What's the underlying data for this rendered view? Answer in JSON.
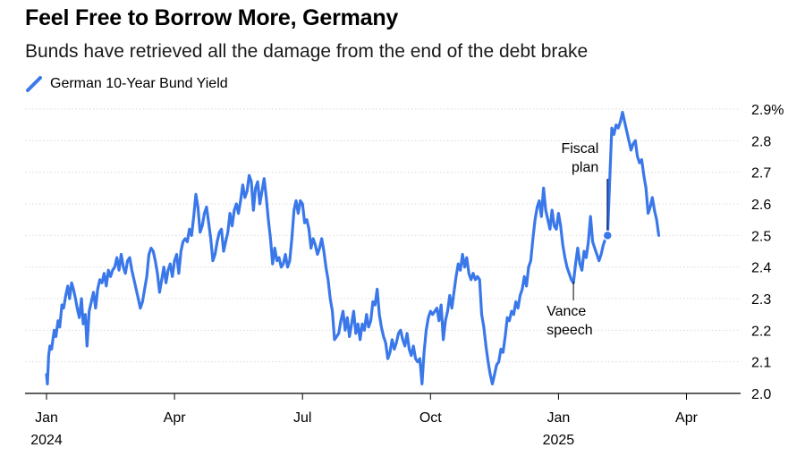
{
  "title": "Feel Free to Borrow More, Germany",
  "subtitle": "Bunds have retrieved all the damage from the end of the debt brake",
  "legend": {
    "label": "German 10-Year Bund Yield",
    "color": "#3a78ea"
  },
  "chart_data": {
    "type": "line",
    "title": "Feel Free to Borrow More, Germany",
    "xlabel": "",
    "ylabel": "",
    "ylim": [
      2.0,
      2.9
    ],
    "xlim_month_index": [
      0,
      16
    ],
    "y_ticks": [
      {
        "value": 2.9,
        "label": "2.9%"
      },
      {
        "value": 2.8,
        "label": "2.8"
      },
      {
        "value": 2.7,
        "label": "2.7"
      },
      {
        "value": 2.6,
        "label": "2.6"
      },
      {
        "value": 2.5,
        "label": "2.5"
      },
      {
        "value": 2.4,
        "label": "2.4"
      },
      {
        "value": 2.3,
        "label": "2.3"
      },
      {
        "value": 2.2,
        "label": "2.2"
      },
      {
        "value": 2.1,
        "label": "2.1"
      },
      {
        "value": 2.0,
        "label": "2.0"
      }
    ],
    "x_ticks": [
      {
        "t": 0,
        "label": "Jan",
        "sublabel": "2024"
      },
      {
        "t": 3,
        "label": "Apr",
        "sublabel": ""
      },
      {
        "t": 6,
        "label": "Jul",
        "sublabel": ""
      },
      {
        "t": 9,
        "label": "Oct",
        "sublabel": ""
      },
      {
        "t": 12,
        "label": "Jan",
        "sublabel": "2025"
      },
      {
        "t": 15,
        "label": "Apr",
        "sublabel": ""
      }
    ],
    "series": [
      {
        "name": "German 10-Year Bund Yield",
        "color": "#3a78ea",
        "points": [
          [
            0.0,
            2.06
          ],
          [
            0.02,
            2.03
          ],
          [
            0.05,
            2.12
          ],
          [
            0.08,
            2.15
          ],
          [
            0.12,
            2.14
          ],
          [
            0.18,
            2.2
          ],
          [
            0.22,
            2.18
          ],
          [
            0.27,
            2.23
          ],
          [
            0.31,
            2.21
          ],
          [
            0.36,
            2.28
          ],
          [
            0.4,
            2.27
          ],
          [
            0.45,
            2.31
          ],
          [
            0.5,
            2.34
          ],
          [
            0.54,
            2.3
          ],
          [
            0.59,
            2.35
          ],
          [
            0.63,
            2.33
          ],
          [
            0.68,
            2.3
          ],
          [
            0.72,
            2.27
          ],
          [
            0.77,
            2.24
          ],
          [
            0.82,
            2.3
          ],
          [
            0.86,
            2.22
          ],
          [
            0.91,
            2.25
          ],
          [
            0.95,
            2.15
          ],
          [
            1.0,
            2.26
          ],
          [
            1.05,
            2.29
          ],
          [
            1.1,
            2.32
          ],
          [
            1.15,
            2.27
          ],
          [
            1.2,
            2.33
          ],
          [
            1.25,
            2.36
          ],
          [
            1.3,
            2.35
          ],
          [
            1.35,
            2.38
          ],
          [
            1.4,
            2.34
          ],
          [
            1.45,
            2.39
          ],
          [
            1.5,
            2.37
          ],
          [
            1.55,
            2.39
          ],
          [
            1.6,
            2.4
          ],
          [
            1.65,
            2.43
          ],
          [
            1.7,
            2.39
          ],
          [
            1.75,
            2.44
          ],
          [
            1.8,
            2.4
          ],
          [
            1.85,
            2.38
          ],
          [
            1.9,
            2.42
          ],
          [
            1.95,
            2.43
          ],
          [
            2.0,
            2.39
          ],
          [
            2.05,
            2.36
          ],
          [
            2.1,
            2.33
          ],
          [
            2.15,
            2.3
          ],
          [
            2.2,
            2.27
          ],
          [
            2.25,
            2.29
          ],
          [
            2.3,
            2.33
          ],
          [
            2.35,
            2.37
          ],
          [
            2.4,
            2.44
          ],
          [
            2.45,
            2.46
          ],
          [
            2.5,
            2.45
          ],
          [
            2.55,
            2.42
          ],
          [
            2.6,
            2.38
          ],
          [
            2.65,
            2.32
          ],
          [
            2.7,
            2.36
          ],
          [
            2.75,
            2.4
          ],
          [
            2.8,
            2.35
          ],
          [
            2.85,
            2.39
          ],
          [
            2.9,
            2.41
          ],
          [
            2.95,
            2.37
          ],
          [
            3.0,
            2.42
          ],
          [
            3.05,
            2.44
          ],
          [
            3.1,
            2.38
          ],
          [
            3.15,
            2.45
          ],
          [
            3.2,
            2.48
          ],
          [
            3.25,
            2.49
          ],
          [
            3.3,
            2.48
          ],
          [
            3.35,
            2.52
          ],
          [
            3.4,
            2.5
          ],
          [
            3.45,
            2.56
          ],
          [
            3.5,
            2.63
          ],
          [
            3.55,
            2.59
          ],
          [
            3.6,
            2.51
          ],
          [
            3.65,
            2.53
          ],
          [
            3.7,
            2.57
          ],
          [
            3.75,
            2.59
          ],
          [
            3.8,
            2.54
          ],
          [
            3.85,
            2.49
          ],
          [
            3.9,
            2.42
          ],
          [
            3.95,
            2.44
          ],
          [
            4.0,
            2.48
          ],
          [
            4.05,
            2.51
          ],
          [
            4.1,
            2.52
          ],
          [
            4.15,
            2.45
          ],
          [
            4.2,
            2.48
          ],
          [
            4.25,
            2.51
          ],
          [
            4.3,
            2.57
          ],
          [
            4.35,
            2.53
          ],
          [
            4.4,
            2.58
          ],
          [
            4.45,
            2.6
          ],
          [
            4.5,
            2.57
          ],
          [
            4.55,
            2.61
          ],
          [
            4.6,
            2.66
          ],
          [
            4.65,
            2.62
          ],
          [
            4.7,
            2.64
          ],
          [
            4.75,
            2.69
          ],
          [
            4.8,
            2.67
          ],
          [
            4.85,
            2.58
          ],
          [
            4.9,
            2.65
          ],
          [
            4.95,
            2.67
          ],
          [
            5.0,
            2.6
          ],
          [
            5.05,
            2.64
          ],
          [
            5.1,
            2.68
          ],
          [
            5.15,
            2.62
          ],
          [
            5.2,
            2.55
          ],
          [
            5.25,
            2.49
          ],
          [
            5.3,
            2.41
          ],
          [
            5.35,
            2.46
          ],
          [
            5.4,
            2.42
          ],
          [
            5.45,
            2.43
          ],
          [
            5.5,
            2.4
          ],
          [
            5.55,
            2.41
          ],
          [
            5.6,
            2.44
          ],
          [
            5.65,
            2.4
          ],
          [
            5.7,
            2.42
          ],
          [
            5.75,
            2.49
          ],
          [
            5.8,
            2.58
          ],
          [
            5.85,
            2.61
          ],
          [
            5.9,
            2.57
          ],
          [
            5.95,
            2.61
          ],
          [
            6.0,
            2.6
          ],
          [
            6.05,
            2.54
          ],
          [
            6.1,
            2.55
          ],
          [
            6.15,
            2.52
          ],
          [
            6.2,
            2.46
          ],
          [
            6.25,
            2.49
          ],
          [
            6.3,
            2.47
          ],
          [
            6.35,
            2.44
          ],
          [
            6.4,
            2.46
          ],
          [
            6.45,
            2.49
          ],
          [
            6.5,
            2.45
          ],
          [
            6.55,
            2.4
          ],
          [
            6.6,
            2.36
          ],
          [
            6.65,
            2.3
          ],
          [
            6.7,
            2.26
          ],
          [
            6.75,
            2.17
          ],
          [
            6.8,
            2.18
          ],
          [
            6.85,
            2.19
          ],
          [
            6.9,
            2.23
          ],
          [
            6.95,
            2.26
          ],
          [
            7.0,
            2.2
          ],
          [
            7.05,
            2.24
          ],
          [
            7.1,
            2.18
          ],
          [
            7.15,
            2.22
          ],
          [
            7.2,
            2.26
          ],
          [
            7.25,
            2.19
          ],
          [
            7.3,
            2.22
          ],
          [
            7.35,
            2.17
          ],
          [
            7.4,
            2.22
          ],
          [
            7.45,
            2.2
          ],
          [
            7.5,
            2.25
          ],
          [
            7.55,
            2.21
          ],
          [
            7.6,
            2.23
          ],
          [
            7.65,
            2.29
          ],
          [
            7.7,
            2.28
          ],
          [
            7.75,
            2.33
          ],
          [
            7.8,
            2.25
          ],
          [
            7.85,
            2.21
          ],
          [
            7.9,
            2.18
          ],
          [
            7.95,
            2.16
          ],
          [
            8.0,
            2.11
          ],
          [
            8.05,
            2.13
          ],
          [
            8.1,
            2.17
          ],
          [
            8.15,
            2.14
          ],
          [
            8.2,
            2.16
          ],
          [
            8.25,
            2.19
          ],
          [
            8.3,
            2.2
          ],
          [
            8.35,
            2.17
          ],
          [
            8.4,
            2.15
          ],
          [
            8.45,
            2.19
          ],
          [
            8.5,
            2.14
          ],
          [
            8.55,
            2.12
          ],
          [
            8.6,
            2.15
          ],
          [
            8.65,
            2.11
          ],
          [
            8.7,
            2.1
          ],
          [
            8.75,
            2.11
          ],
          [
            8.8,
            2.03
          ],
          [
            8.85,
            2.13
          ],
          [
            8.9,
            2.2
          ],
          [
            8.95,
            2.24
          ],
          [
            9.0,
            2.26
          ],
          [
            9.05,
            2.25
          ],
          [
            9.1,
            2.26
          ],
          [
            9.15,
            2.27
          ],
          [
            9.2,
            2.23
          ],
          [
            9.25,
            2.28
          ],
          [
            9.3,
            2.17
          ],
          [
            9.35,
            2.23
          ],
          [
            9.4,
            2.26
          ],
          [
            9.45,
            2.31
          ],
          [
            9.5,
            2.27
          ],
          [
            9.55,
            2.32
          ],
          [
            9.6,
            2.37
          ],
          [
            9.65,
            2.41
          ],
          [
            9.7,
            2.39
          ],
          [
            9.75,
            2.44
          ],
          [
            9.8,
            2.4
          ],
          [
            9.85,
            2.43
          ],
          [
            9.9,
            2.38
          ],
          [
            9.95,
            2.36
          ],
          [
            10.0,
            2.38
          ],
          [
            10.05,
            2.36
          ],
          [
            10.1,
            2.37
          ],
          [
            10.15,
            2.36
          ],
          [
            10.2,
            2.25
          ],
          [
            10.25,
            2.21
          ],
          [
            10.3,
            2.15
          ],
          [
            10.35,
            2.1
          ],
          [
            10.4,
            2.06
          ],
          [
            10.45,
            2.03
          ],
          [
            10.5,
            2.06
          ],
          [
            10.55,
            2.09
          ],
          [
            10.6,
            2.1
          ],
          [
            10.65,
            2.14
          ],
          [
            10.7,
            2.13
          ],
          [
            10.75,
            2.18
          ],
          [
            10.8,
            2.24
          ],
          [
            10.85,
            2.23
          ],
          [
            10.9,
            2.26
          ],
          [
            10.95,
            2.25
          ],
          [
            11.0,
            2.29
          ],
          [
            11.05,
            2.27
          ],
          [
            11.1,
            2.31
          ],
          [
            11.15,
            2.33
          ],
          [
            11.2,
            2.37
          ],
          [
            11.25,
            2.34
          ],
          [
            11.3,
            2.4
          ],
          [
            11.35,
            2.42
          ],
          [
            11.4,
            2.49
          ],
          [
            11.45,
            2.55
          ],
          [
            11.5,
            2.59
          ],
          [
            11.55,
            2.61
          ],
          [
            11.6,
            2.56
          ],
          [
            11.65,
            2.65
          ],
          [
            11.7,
            2.58
          ],
          [
            11.75,
            2.55
          ],
          [
            11.8,
            2.52
          ],
          [
            11.85,
            2.58
          ],
          [
            11.9,
            2.53
          ],
          [
            11.95,
            2.52
          ],
          [
            12.0,
            2.57
          ],
          [
            12.05,
            2.53
          ],
          [
            12.1,
            2.47
          ],
          [
            12.15,
            2.43
          ],
          [
            12.2,
            2.4
          ],
          [
            12.25,
            2.38
          ],
          [
            12.3,
            2.36
          ],
          [
            12.35,
            2.35
          ],
          [
            12.4,
            2.41
          ],
          [
            12.45,
            2.46
          ],
          [
            12.5,
            2.41
          ],
          [
            12.55,
            2.39
          ],
          [
            12.6,
            2.45
          ],
          [
            12.65,
            2.43
          ],
          [
            12.7,
            2.48
          ],
          [
            12.75,
            2.56
          ],
          [
            12.8,
            2.48
          ],
          [
            12.85,
            2.46
          ],
          [
            12.9,
            2.44
          ],
          [
            12.95,
            2.42
          ],
          [
            13.0,
            2.44
          ],
          [
            13.05,
            2.47
          ],
          [
            13.1,
            2.49
          ],
          [
            13.15,
            2.5
          ],
          [
            13.2,
            2.67
          ],
          [
            13.25,
            2.84
          ],
          [
            13.3,
            2.82
          ],
          [
            13.35,
            2.85
          ],
          [
            13.4,
            2.84
          ],
          [
            13.45,
            2.86
          ],
          [
            13.5,
            2.89
          ],
          [
            13.55,
            2.86
          ],
          [
            13.6,
            2.83
          ],
          [
            13.65,
            2.8
          ],
          [
            13.7,
            2.77
          ],
          [
            13.75,
            2.79
          ],
          [
            13.8,
            2.8
          ],
          [
            13.85,
            2.75
          ],
          [
            13.9,
            2.73
          ],
          [
            13.95,
            2.74
          ],
          [
            14.0,
            2.69
          ],
          [
            14.05,
            2.65
          ],
          [
            14.1,
            2.57
          ],
          [
            14.15,
            2.59
          ],
          [
            14.2,
            2.62
          ],
          [
            14.25,
            2.58
          ],
          [
            14.3,
            2.55
          ],
          [
            14.35,
            2.5
          ]
        ]
      }
    ],
    "annotations": [
      {
        "name": "fiscal-plan",
        "lines": [
          "Fiscal",
          "plan"
        ],
        "t": 13.15,
        "value": 2.5,
        "marker": true
      },
      {
        "name": "vance-speech",
        "lines": [
          "Vance",
          "speech"
        ],
        "t": 12.35,
        "value": 2.36,
        "marker": false
      }
    ]
  }
}
